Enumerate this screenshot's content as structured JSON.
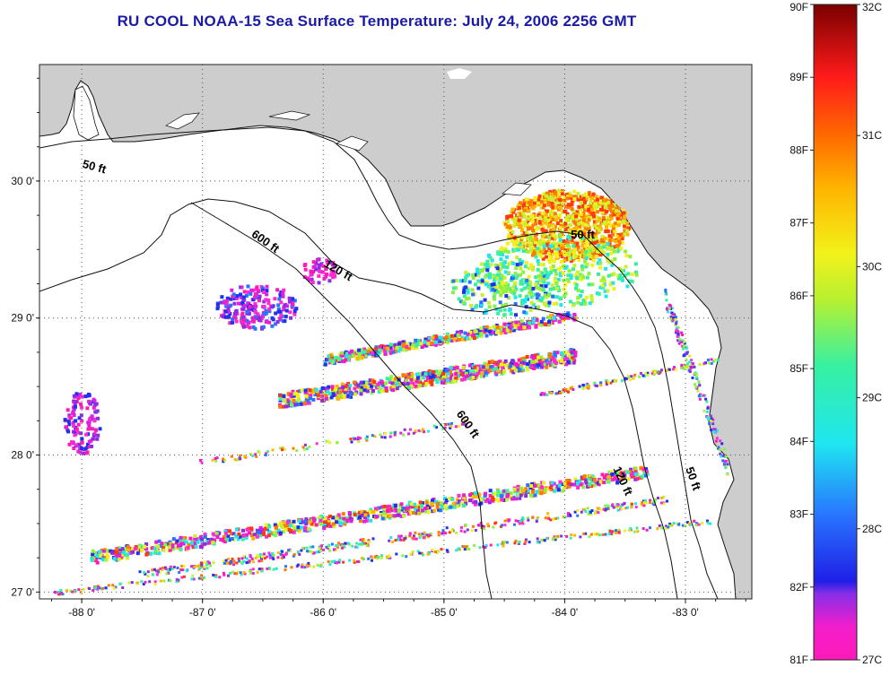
{
  "title": "RU COOL  NOAA-15  Sea Surface Temperature:  July 24, 2006 2256 GMT",
  "colors": {
    "land": "#cdcdcd",
    "coast": "#111111",
    "grid": "#444444",
    "title": "#1a1aa6"
  },
  "map": {
    "lon_range": [
      -88.35,
      -82.45
    ],
    "lat_range": [
      26.95,
      30.85
    ],
    "lon_ticks": [
      {
        "value": -88,
        "label": "-88 0'"
      },
      {
        "value": -87,
        "label": "-87 0'"
      },
      {
        "value": -86,
        "label": "-86 0'"
      },
      {
        "value": -85,
        "label": "-85 0'"
      },
      {
        "value": -84,
        "label": "-84 0'"
      },
      {
        "value": -83,
        "label": "-83 0'"
      }
    ],
    "lat_ticks": [
      {
        "value": 27,
        "label": "27 0'"
      },
      {
        "value": 28,
        "label": "28 0'"
      },
      {
        "value": 29,
        "label": "29 0'"
      },
      {
        "value": 30,
        "label": "30 0'"
      }
    ],
    "depth_labels": [
      {
        "text": "50 ft",
        "lon": -88.0,
        "lat": 30.1,
        "angle": 15
      },
      {
        "text": "600 ft",
        "lon": -86.6,
        "lat": 29.6,
        "angle": 35
      },
      {
        "text": "120 ft",
        "lon": -86.0,
        "lat": 29.38,
        "angle": 30
      },
      {
        "text": "50 ft",
        "lon": -83.95,
        "lat": 29.58,
        "angle": 0
      },
      {
        "text": "600 ft",
        "lon": -84.9,
        "lat": 28.3,
        "angle": 55
      },
      {
        "text": "120 ft",
        "lon": -83.6,
        "lat": 27.9,
        "angle": 65
      },
      {
        "text": "50 ft",
        "lon": -83.0,
        "lat": 27.9,
        "angle": 70
      }
    ]
  },
  "colorbar": {
    "min_f": 81,
    "max_f": 90,
    "min_c": 27,
    "max_c": 32,
    "f_labels": [
      "90F",
      "89F",
      "88F",
      "87F",
      "86F",
      "85F",
      "84F",
      "83F",
      "82F",
      "81F"
    ],
    "c_labels": [
      "32C",
      "31C",
      "30C",
      "29C",
      "28C",
      "27C"
    ]
  }
}
